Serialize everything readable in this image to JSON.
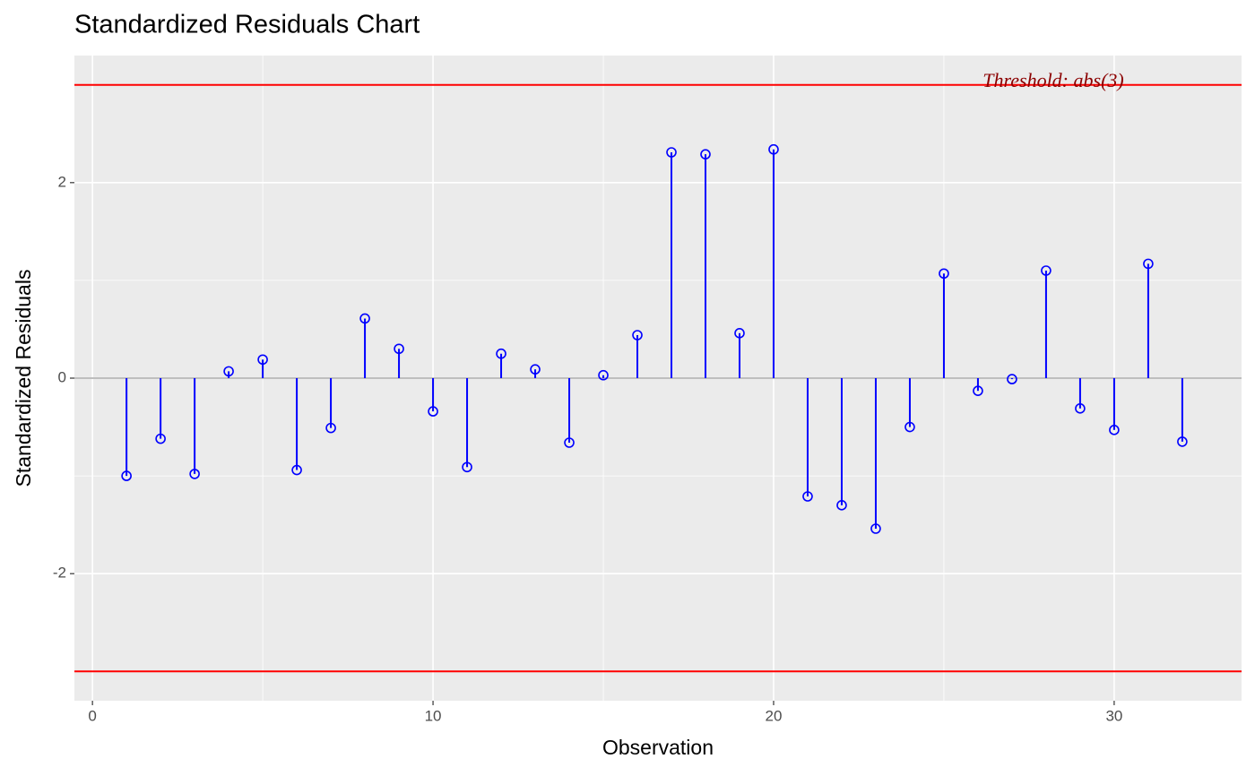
{
  "chart_data": {
    "type": "lollipop",
    "title": "Standardized Residuals Chart",
    "x_label": "Observation",
    "y_label": "Standardized Residuals",
    "x": [
      1,
      2,
      3,
      4,
      5,
      6,
      7,
      8,
      9,
      10,
      11,
      12,
      13,
      14,
      15,
      16,
      17,
      18,
      19,
      20,
      21,
      22,
      23,
      24,
      25,
      26,
      27,
      28,
      29,
      30,
      31,
      32
    ],
    "values": [
      -1.0,
      -0.62,
      -0.98,
      0.07,
      0.19,
      -0.94,
      -0.51,
      0.61,
      0.3,
      -0.34,
      -0.91,
      0.25,
      0.09,
      -0.66,
      0.03,
      0.44,
      2.31,
      2.29,
      0.46,
      2.34,
      -1.21,
      -1.3,
      -1.54,
      -0.5,
      1.07,
      -0.13,
      -0.01,
      1.1,
      -0.31,
      -0.53,
      1.17,
      -0.65
    ],
    "color": "#0000ff",
    "xlim": [
      -0.53,
      33.74
    ],
    "xticks": [
      0,
      10,
      20,
      30
    ],
    "ylim": [
      -3.3,
      3.3
    ],
    "yticks": [
      -2,
      0,
      2
    ],
    "threshold_lines": [
      -3,
      3
    ],
    "threshold_color": "#ff0000",
    "annotation": "Threshold: abs(3)",
    "grid": true
  }
}
